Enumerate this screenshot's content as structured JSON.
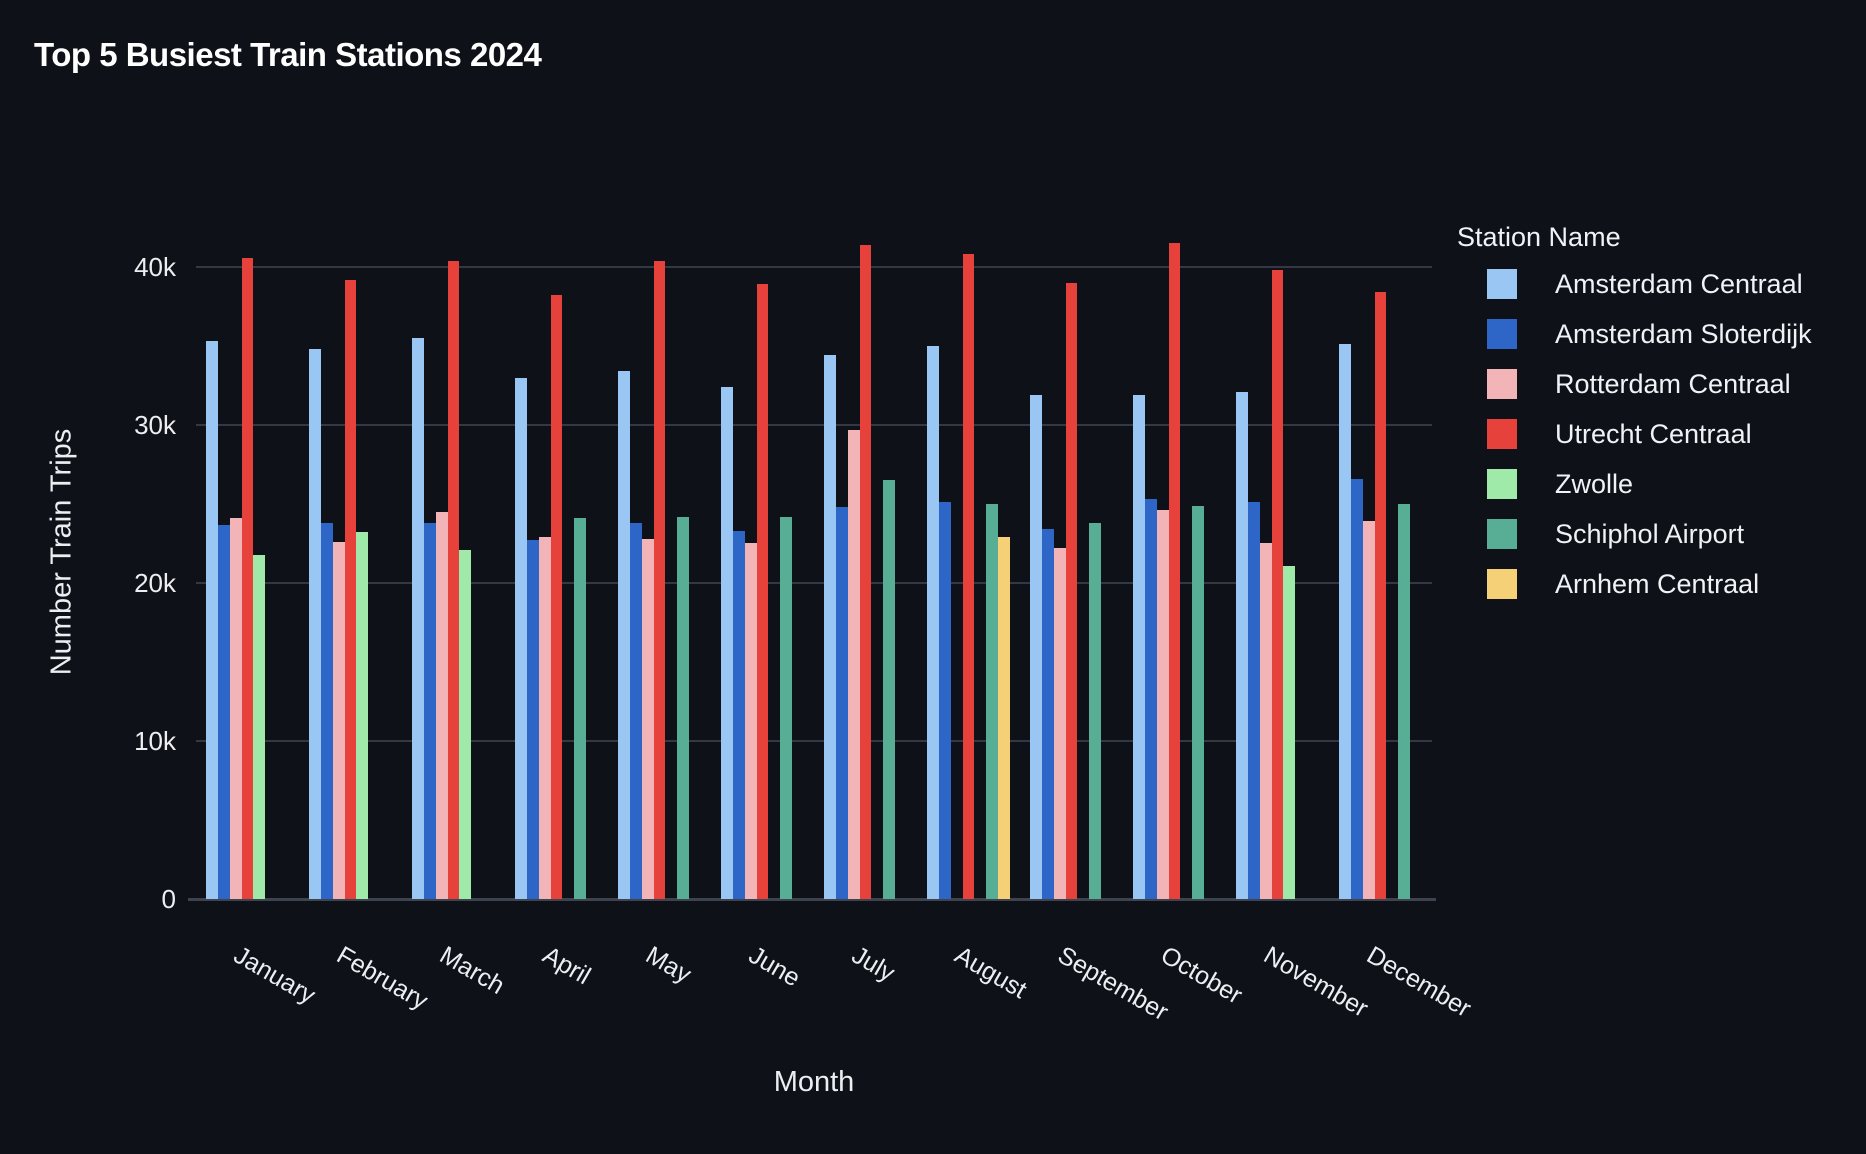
{
  "title": "Top 5 Busiest Train Stations 2024",
  "legend": {
    "title": "Station Name"
  },
  "chart_data": {
    "type": "bar",
    "title": "Top 5 Busiest Train Stations 2024",
    "xlabel": "Month",
    "ylabel": "Number Train Trips",
    "ylim": [
      0,
      44000
    ],
    "grid": "horizontal",
    "legend_position": "right",
    "legend_title": "Station Name",
    "y_ticks": [
      {
        "label": "0",
        "value": 0
      },
      {
        "label": "10k",
        "value": 10000
      },
      {
        "label": "20k",
        "value": 20000
      },
      {
        "label": "30k",
        "value": 30000
      },
      {
        "label": "40k",
        "value": 40000
      }
    ],
    "categories": [
      "January",
      "February",
      "March",
      "April",
      "May",
      "June",
      "July",
      "August",
      "September",
      "October",
      "November",
      "December"
    ],
    "series": [
      {
        "name": "Amsterdam Centraal",
        "color": "#9ac6f3",
        "values": [
          35300,
          34800,
          35500,
          33000,
          33400,
          32400,
          34400,
          35000,
          31900,
          31900,
          32100,
          35100
        ]
      },
      {
        "name": "Amsterdam Sloterdijk",
        "color": "#2e66c7",
        "values": [
          23700,
          23800,
          23800,
          22700,
          23800,
          23300,
          24800,
          25100,
          23400,
          25300,
          25100,
          26600
        ]
      },
      {
        "name": "Rotterdam Centraal",
        "color": "#f3b4b8",
        "values": [
          24100,
          22600,
          24500,
          22900,
          22800,
          22500,
          29700,
          null,
          22200,
          24600,
          22500,
          23900
        ]
      },
      {
        "name": "Utrecht Centraal",
        "color": "#e6413a",
        "values": [
          40600,
          39200,
          40400,
          38200,
          40400,
          38900,
          41400,
          40800,
          39000,
          41500,
          39800,
          38400
        ]
      },
      {
        "name": "Zwolle",
        "color": "#9fe9a9",
        "values": [
          21800,
          23200,
          22100,
          null,
          null,
          null,
          null,
          null,
          null,
          null,
          21100,
          null
        ]
      },
      {
        "name": "Schiphol Airport",
        "color": "#58ae95",
        "values": [
          null,
          null,
          null,
          24100,
          24200,
          24200,
          26500,
          25000,
          23800,
          24900,
          null,
          25000
        ]
      },
      {
        "name": "Arnhem Centraal",
        "color": "#f5d077",
        "values": [
          null,
          null,
          null,
          null,
          null,
          null,
          null,
          22900,
          null,
          null,
          null,
          null
        ]
      }
    ]
  }
}
